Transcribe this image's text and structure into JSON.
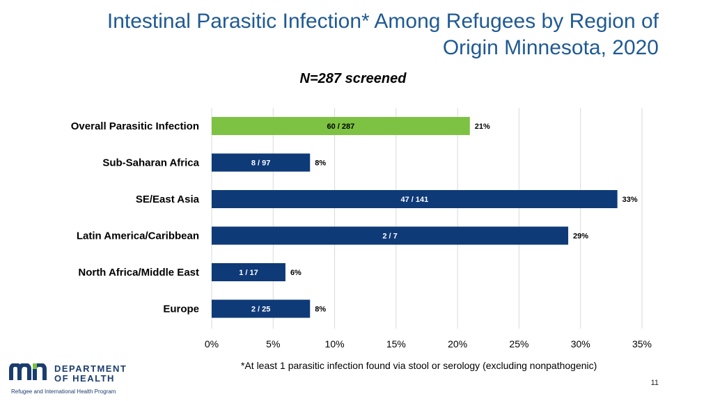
{
  "slide": {
    "title": "Intestinal Parasitic Infection* Among Refugees by Region of Origin Minnesota, 2020",
    "subtitle": "N=287 screened",
    "footnote": "*At least 1 parasitic infection found via stool or serology (excluding nonpathogenic)",
    "page_number": "11"
  },
  "logo": {
    "line1": "DEPARTMENT",
    "line2": "OF HEALTH",
    "program": "Refugee and International Health Program"
  },
  "chart_data": {
    "type": "bar",
    "orientation": "horizontal",
    "categories": [
      "Overall Parasitic Infection",
      "Sub-Saharan Africa",
      "SE/East Asia",
      "Latin America/Caribbean",
      "North Africa/Middle East",
      "Europe"
    ],
    "values": [
      21,
      8,
      33,
      29,
      6,
      8
    ],
    "value_labels": [
      "21%",
      "8%",
      "33%",
      "29%",
      "6%",
      "8%"
    ],
    "inner_labels": [
      "60 / 287",
      "8 / 97",
      "47 / 141",
      "2 / 7",
      "1 / 17",
      "2 / 25"
    ],
    "xlim": [
      0,
      35
    ],
    "xticks": [
      0,
      5,
      10,
      15,
      20,
      25,
      30,
      35
    ],
    "xtick_labels": [
      "0%",
      "5%",
      "10%",
      "15%",
      "20%",
      "25%",
      "30%",
      "35%"
    ],
    "grid": true,
    "colors": {
      "highlight": "#7dc242",
      "default": "#0f3a78",
      "gridline": "#d9d9d9"
    }
  }
}
